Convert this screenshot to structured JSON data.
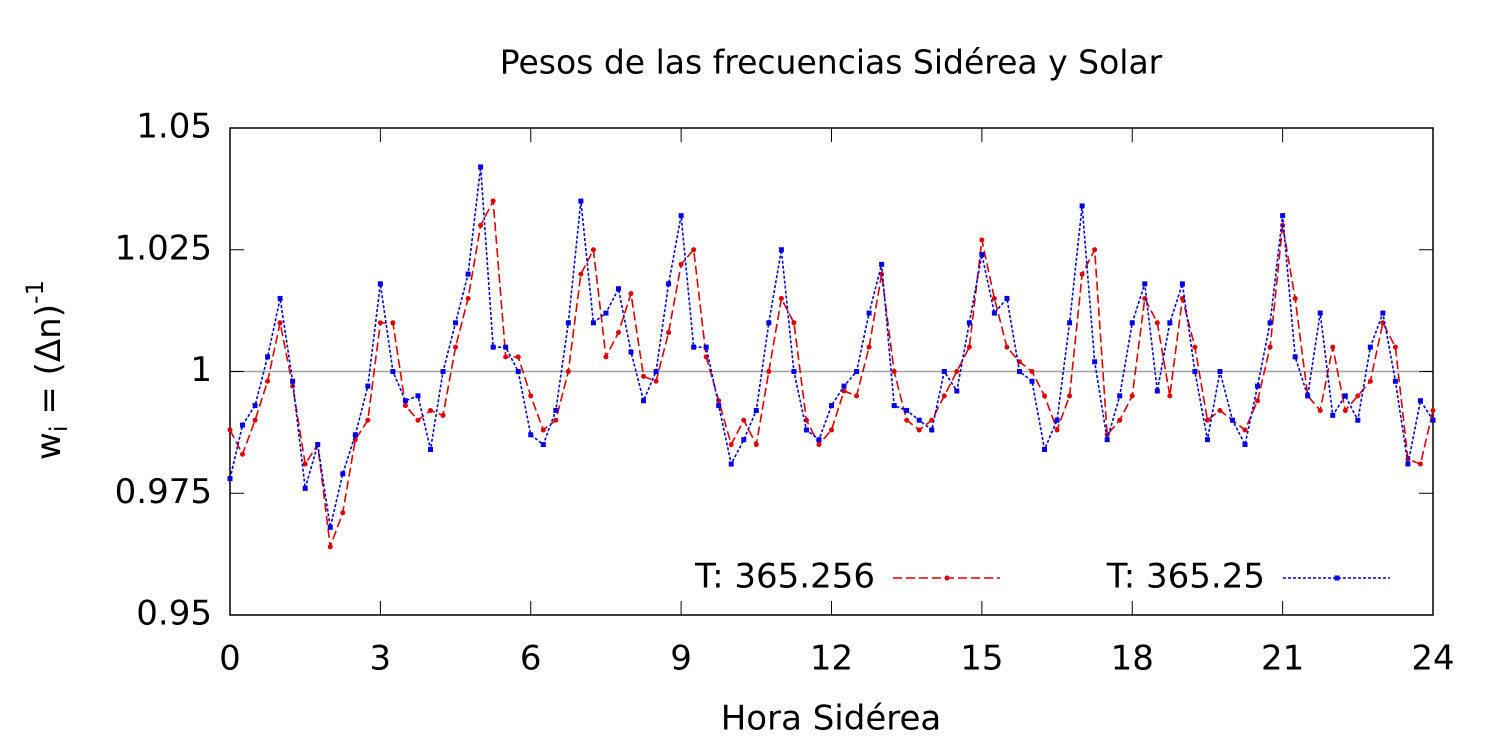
{
  "chart_data": {
    "type": "line",
    "title": "Pesos de las frecuencias Sidérea y Solar",
    "x_label": "Hora Sidérea",
    "y_label": {
      "base": "w",
      "sub": "i",
      "mid": " = (Δn)",
      "sup": "-1"
    },
    "x": [
      0,
      0.25,
      0.5,
      0.75,
      1,
      1.25,
      1.5,
      1.75,
      2,
      2.25,
      2.5,
      2.75,
      3,
      3.25,
      3.5,
      3.75,
      4,
      4.25,
      4.5,
      4.75,
      5,
      5.25,
      5.5,
      5.75,
      6,
      6.25,
      6.5,
      6.75,
      7,
      7.25,
      7.5,
      7.75,
      8,
      8.25,
      8.5,
      8.75,
      9,
      9.25,
      9.5,
      9.75,
      10,
      10.25,
      10.5,
      10.75,
      11,
      11.25,
      11.5,
      11.75,
      12,
      12.25,
      12.5,
      12.75,
      13,
      13.25,
      13.5,
      13.75,
      14,
      14.25,
      14.5,
      14.75,
      15,
      15.25,
      15.5,
      15.75,
      16,
      16.25,
      16.5,
      16.75,
      17,
      17.25,
      17.5,
      17.75,
      18,
      18.25,
      18.5,
      18.75,
      19,
      19.25,
      19.5,
      19.75,
      20,
      20.25,
      20.5,
      20.75,
      21,
      21.25,
      21.5,
      21.75,
      22,
      22.25,
      22.5,
      22.75,
      23,
      23.25,
      23.5,
      23.75,
      24
    ],
    "series": [
      {
        "name": "T: 365.256",
        "color": "#e00000",
        "dash": "dashed",
        "marker": "circle",
        "values": [
          0.988,
          0.983,
          0.99,
          0.998,
          1.01,
          0.997,
          0.981,
          0.985,
          0.964,
          0.971,
          0.986,
          0.99,
          1.01,
          1.01,
          0.993,
          0.99,
          0.992,
          0.991,
          1.005,
          1.015,
          1.03,
          1.035,
          1.003,
          1.003,
          0.995,
          0.988,
          0.99,
          1.0,
          1.02,
          1.025,
          1.003,
          1.008,
          1.016,
          0.999,
          0.998,
          1.008,
          1.022,
          1.025,
          1.003,
          0.994,
          0.985,
          0.99,
          0.985,
          1.0,
          1.015,
          1.01,
          0.99,
          0.985,
          0.988,
          0.996,
          0.995,
          1.005,
          1.02,
          1.0,
          0.99,
          0.988,
          0.99,
          0.995,
          1.0,
          1.005,
          1.027,
          1.015,
          1.005,
          1.002,
          1.0,
          0.995,
          0.988,
          0.995,
          1.02,
          1.025,
          0.987,
          0.99,
          0.995,
          1.015,
          1.01,
          0.995,
          1.015,
          1.005,
          0.99,
          0.992,
          0.99,
          0.988,
          0.994,
          1.005,
          1.03,
          1.015,
          0.995,
          0.992,
          1.005,
          0.992,
          0.995,
          0.998,
          1.01,
          1.005,
          0.982,
          0.981,
          0.992
        ]
      },
      {
        "name": "T: 365.25",
        "color": "#0000e0",
        "dash": "dotted",
        "marker": "square",
        "values": [
          0.978,
          0.989,
          0.993,
          1.003,
          1.015,
          0.998,
          0.976,
          0.985,
          0.968,
          0.979,
          0.987,
          0.997,
          1.018,
          1.0,
          0.994,
          0.995,
          0.984,
          1.0,
          1.01,
          1.02,
          1.042,
          1.005,
          1.005,
          1.0,
          0.987,
          0.985,
          0.992,
          1.01,
          1.035,
          1.01,
          1.012,
          1.017,
          1.004,
          0.994,
          1.0,
          1.018,
          1.032,
          1.005,
          1.005,
          0.993,
          0.981,
          0.986,
          0.992,
          1.01,
          1.025,
          1.0,
          0.988,
          0.986,
          0.993,
          0.997,
          1.0,
          1.012,
          1.022,
          0.993,
          0.992,
          0.99,
          0.988,
          1.0,
          0.996,
          1.01,
          1.024,
          1.012,
          1.015,
          1.0,
          0.998,
          0.984,
          0.99,
          1.01,
          1.034,
          1.002,
          0.986,
          0.995,
          1.01,
          1.018,
          0.996,
          1.01,
          1.018,
          1.0,
          0.986,
          1.0,
          0.99,
          0.985,
          0.997,
          1.01,
          1.032,
          1.003,
          0.995,
          1.012,
          0.991,
          0.995,
          0.99,
          1.005,
          1.012,
          0.998,
          0.981,
          0.994,
          0.99
        ]
      }
    ],
    "xlim": [
      0,
      24
    ],
    "xticks": [
      0,
      3,
      6,
      9,
      12,
      15,
      18,
      21,
      24
    ],
    "ylim": [
      0.95,
      1.05
    ],
    "yticks": [
      0.95,
      0.975,
      1,
      1.025,
      1.05
    ],
    "reference_line": 1,
    "legend": "bottom right"
  }
}
